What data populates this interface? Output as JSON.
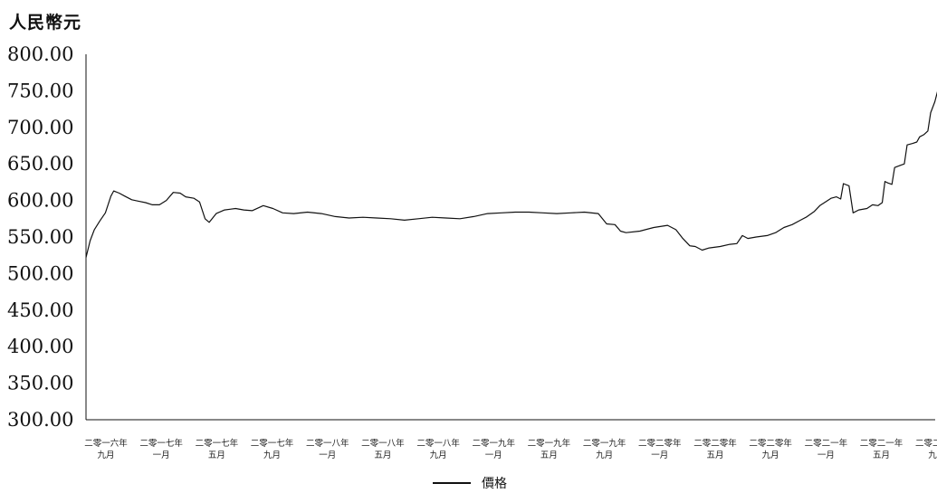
{
  "chart_data": {
    "type": "line",
    "ylabel": "人民幣元",
    "ylim": [
      300,
      800
    ],
    "yticks": [
      "800.00",
      "750.00",
      "700.00",
      "650.00",
      "600.00",
      "550.00",
      "500.00",
      "450.00",
      "400.00",
      "350.00",
      "300.00"
    ],
    "xlim": [
      0,
      61
    ],
    "xticks": [
      {
        "x": 0,
        "line1": "二零一六年",
        "line2": "九月"
      },
      {
        "x": 4,
        "line1": "二零一七年",
        "line2": "一月"
      },
      {
        "x": 8,
        "line1": "二零一七年",
        "line2": "五月"
      },
      {
        "x": 12,
        "line1": "二零一七年",
        "line2": "九月"
      },
      {
        "x": 16,
        "line1": "二零一八年",
        "line2": "一月"
      },
      {
        "x": 20,
        "line1": "二零一八年",
        "line2": "五月"
      },
      {
        "x": 24,
        "line1": "二零一八年",
        "line2": "九月"
      },
      {
        "x": 28,
        "line1": "二零一九年",
        "line2": "一月"
      },
      {
        "x": 32,
        "line1": "二零一九年",
        "line2": "五月"
      },
      {
        "x": 36,
        "line1": "二零一九年",
        "line2": "九月"
      },
      {
        "x": 40,
        "line1": "二零二零年",
        "line2": "一月"
      },
      {
        "x": 44,
        "line1": "二零二零年",
        "line2": "五月"
      },
      {
        "x": 48,
        "line1": "二零二零年",
        "line2": "九月"
      },
      {
        "x": 52,
        "line1": "二零二一年",
        "line2": "一月"
      },
      {
        "x": 56,
        "line1": "二零二一年",
        "line2": "五月"
      },
      {
        "x": 60,
        "line1": "二零二一年",
        "line2": "九月"
      }
    ],
    "legend": "價格",
    "legend_position": "bottom-center",
    "grid": false,
    "series": [
      {
        "name": "價格",
        "color": "#111111",
        "points": [
          [
            0.0,
            522
          ],
          [
            0.3,
            545
          ],
          [
            0.6,
            560
          ],
          [
            1.0,
            572
          ],
          [
            1.4,
            583
          ],
          [
            1.8,
            606
          ],
          [
            2.0,
            613
          ],
          [
            2.4,
            610
          ],
          [
            2.8,
            606
          ],
          [
            3.3,
            601
          ],
          [
            3.8,
            599
          ],
          [
            4.3,
            597
          ],
          [
            4.8,
            594
          ],
          [
            5.3,
            594
          ],
          [
            5.8,
            600
          ],
          [
            6.3,
            611
          ],
          [
            6.8,
            610
          ],
          [
            7.2,
            605
          ],
          [
            7.8,
            603
          ],
          [
            8.2,
            598
          ],
          [
            8.6,
            575
          ],
          [
            8.9,
            570
          ],
          [
            9.4,
            582
          ],
          [
            10.0,
            587
          ],
          [
            10.8,
            589
          ],
          [
            11.4,
            587
          ],
          [
            12.0,
            586
          ],
          [
            12.8,
            593
          ],
          [
            13.5,
            589
          ],
          [
            14.2,
            583
          ],
          [
            15.0,
            582
          ],
          [
            16.0,
            584
          ],
          [
            17.0,
            582
          ],
          [
            18.0,
            578
          ],
          [
            19.0,
            576
          ],
          [
            20.0,
            577
          ],
          [
            21.0,
            576
          ],
          [
            22.0,
            575
          ],
          [
            23.0,
            573
          ],
          [
            24.0,
            575
          ],
          [
            25.0,
            577
          ],
          [
            26.0,
            576
          ],
          [
            27.0,
            575
          ],
          [
            28.0,
            578
          ],
          [
            29.0,
            582
          ],
          [
            30.0,
            583
          ],
          [
            31.0,
            584
          ],
          [
            32.0,
            584
          ],
          [
            33.0,
            583
          ],
          [
            34.0,
            582
          ],
          [
            35.0,
            583
          ],
          [
            36.0,
            584
          ],
          [
            37.0,
            582
          ],
          [
            37.6,
            568
          ],
          [
            38.2,
            567
          ],
          [
            38.6,
            558
          ],
          [
            39.0,
            556
          ],
          [
            40.0,
            558
          ],
          [
            41.0,
            563
          ],
          [
            42.0,
            566
          ],
          [
            42.6,
            560
          ],
          [
            43.1,
            548
          ],
          [
            43.6,
            538
          ],
          [
            44.0,
            537
          ],
          [
            44.5,
            532
          ],
          [
            45.0,
            535
          ],
          [
            45.8,
            537
          ],
          [
            46.5,
            540
          ],
          [
            47.0,
            541
          ],
          [
            47.4,
            552
          ],
          [
            47.8,
            548
          ],
          [
            48.4,
            550
          ],
          [
            49.2,
            552
          ],
          [
            49.8,
            556
          ],
          [
            50.4,
            563
          ],
          [
            51.0,
            567
          ],
          [
            51.6,
            573
          ],
          [
            52.0,
            577
          ],
          [
            52.6,
            585
          ],
          [
            53.0,
            593
          ],
          [
            53.4,
            598
          ],
          [
            53.8,
            603
          ],
          [
            54.2,
            605
          ],
          [
            54.5,
            602
          ],
          [
            54.7,
            623
          ],
          [
            55.1,
            620
          ],
          [
            55.4,
            583
          ],
          [
            55.8,
            587
          ],
          [
            56.4,
            589
          ],
          [
            56.8,
            594
          ],
          [
            57.2,
            593
          ],
          [
            57.5,
            597
          ],
          [
            57.7,
            626
          ],
          [
            57.9,
            624
          ],
          [
            58.2,
            622
          ],
          [
            58.4,
            645
          ],
          [
            58.8,
            648
          ],
          [
            59.1,
            650
          ],
          [
            59.3,
            676
          ],
          [
            59.7,
            678
          ],
          [
            60.0,
            680
          ],
          [
            60.2,
            687
          ],
          [
            60.5,
            690
          ],
          [
            60.8,
            695
          ],
          [
            61.0,
            720
          ],
          [
            61.3,
            735
          ],
          [
            61.6,
            757
          ]
        ]
      }
    ]
  }
}
